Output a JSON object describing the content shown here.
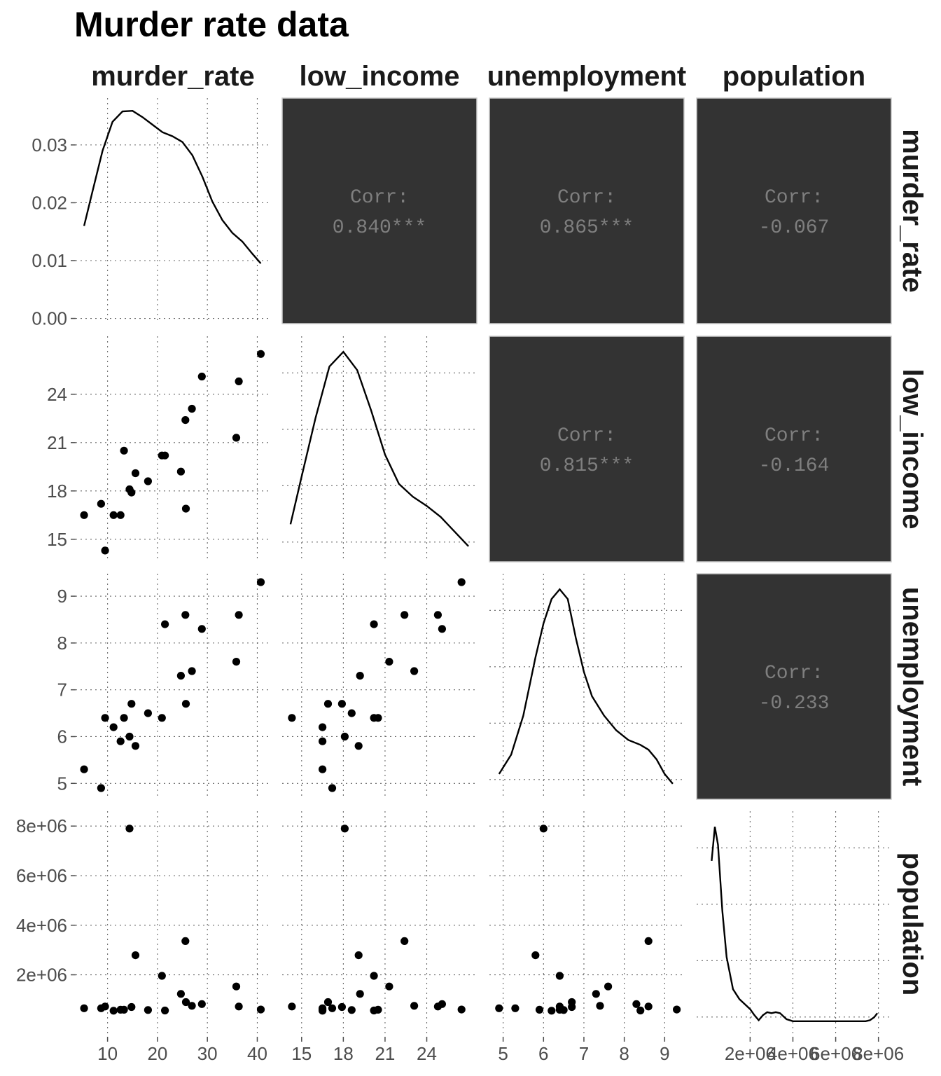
{
  "chart_data": {
    "type": "scatter-matrix",
    "title": "Murder rate data",
    "variables": [
      "murder_rate",
      "low_income",
      "unemployment",
      "population"
    ],
    "correlations": [
      {
        "row": 0,
        "col": 1,
        "label": "Corr:",
        "value": "0.840***"
      },
      {
        "row": 0,
        "col": 2,
        "label": "Corr:",
        "value": "0.865***"
      },
      {
        "row": 0,
        "col": 3,
        "label": "Corr:",
        "value": "-0.067"
      },
      {
        "row": 1,
        "col": 2,
        "label": "Corr:",
        "value": "0.815***"
      },
      {
        "row": 1,
        "col": 3,
        "label": "Corr:",
        "value": "-0.164"
      },
      {
        "row": 2,
        "col": 3,
        "label": "Corr:",
        "value": "-0.233"
      }
    ],
    "axes": {
      "murder_rate": {
        "range": [
          3.6,
          42.6
        ],
        "ticks": [
          10,
          20,
          30,
          40
        ],
        "tick_labels": [
          "10",
          "20",
          "30",
          "40"
        ]
      },
      "low_income": {
        "range": [
          13.6,
          27.6
        ],
        "ticks": [
          15,
          18,
          21,
          24
        ],
        "tick_labels": [
          "15",
          "18",
          "21",
          "24"
        ],
        "x_tick_labels": [
          "15",
          "18",
          "21",
          "24"
        ]
      },
      "unemployment": {
        "range": [
          4.66,
          9.48
        ],
        "ticks": [
          5,
          6,
          7,
          8,
          9
        ],
        "tick_labels": [
          "5",
          "6",
          "7",
          "8",
          "9"
        ]
      },
      "population": {
        "range": [
          -500000,
          8600000
        ],
        "ticks": [
          2000000,
          4000000,
          6000000,
          8000000
        ],
        "tick_labels": [
          "2e+06",
          "4e+06",
          "6e+06",
          "8e+06"
        ]
      }
    },
    "density_axis": {
      "range": [
        -0.0009,
        0.0381
      ],
      "ticks": [
        0,
        0.01,
        0.02,
        0.03
      ],
      "tick_labels": [
        "0.00",
        "0.01",
        "0.02",
        "0.03"
      ]
    },
    "densities": {
      "murder_rate": {
        "x": [
          5.3,
          7,
          9,
          11,
          13,
          15,
          17,
          19,
          21,
          23,
          25,
          27,
          29,
          31,
          33,
          35,
          37,
          39,
          40.7
        ],
        "y": [
          0.016,
          0.022,
          0.029,
          0.034,
          0.0358,
          0.0359,
          0.0348,
          0.0335,
          0.0322,
          0.0315,
          0.0305,
          0.0282,
          0.0245,
          0.0202,
          0.017,
          0.0148,
          0.0133,
          0.0112,
          0.0095
        ]
      },
      "low_income": {
        "x": [
          14.2,
          15,
          16,
          17,
          18,
          19,
          20,
          21,
          22,
          23,
          24,
          25,
          26,
          27
        ],
        "y": [
          0.3,
          1.6,
          3.2,
          4.6,
          5.0,
          4.5,
          3.4,
          2.2,
          1.4,
          1.05,
          0.8,
          0.5,
          0.1,
          -0.3
        ]
      },
      "unemployment": {
        "x": [
          4.9,
          5.2,
          5.5,
          5.8,
          6.0,
          6.2,
          6.4,
          6.6,
          6.8,
          7.0,
          7.2,
          7.5,
          7.8,
          8.1,
          8.4,
          8.6,
          8.8,
          9.0,
          9.2
        ],
        "y": [
          0.4,
          0.8,
          1.6,
          2.8,
          3.5,
          4.0,
          4.2,
          4.0,
          3.2,
          2.5,
          2.0,
          1.6,
          1.3,
          1.1,
          1.0,
          0.9,
          0.7,
          0.4,
          0.2
        ]
      },
      "population": {
        "x": [
          200000,
          350000,
          500000,
          700000,
          900000,
          1200000,
          1500000,
          1700000,
          2000000,
          2200000,
          2400000,
          2600000,
          2800000,
          3000000,
          3200000,
          3400000,
          3700000,
          4000000,
          5000000,
          6000000,
          7000000,
          7400000,
          7600000,
          7800000,
          7950000
        ],
        "y": [
          0.8,
          0.97,
          0.88,
          0.55,
          0.32,
          0.16,
          0.11,
          0.09,
          0.06,
          0.03,
          0.005,
          0.03,
          0.045,
          0.04,
          0.045,
          0.04,
          0.01,
          0.0,
          0.0,
          0.0,
          0.0,
          0.0,
          0.005,
          0.02,
          0.04
        ]
      }
    },
    "observations": {
      "murder_rate": [
        5.3,
        8.7,
        9.5,
        11.2,
        12.6,
        13.3,
        14.4,
        14.8,
        15.6,
        18.1,
        20.9,
        21.5,
        24.7,
        25.6,
        25.7,
        26.9,
        28.9,
        35.8,
        36.3,
        40.7
      ],
      "low_income": [
        16.5,
        17.2,
        14.3,
        16.5,
        16.5,
        20.5,
        18.1,
        17.9,
        19.1,
        18.6,
        20.2,
        20.2,
        19.2,
        22.4,
        16.9,
        23.1,
        25.1,
        21.3,
        24.8,
        26.5
      ],
      "unemployment": [
        5.3,
        4.9,
        6.4,
        6.2,
        5.9,
        6.4,
        6.0,
        6.7,
        5.8,
        6.5,
        6.4,
        8.4,
        7.3,
        8.6,
        6.7,
        7.4,
        8.3,
        7.6,
        8.6,
        9.3
      ],
      "population": [
        650000,
        650000,
        720000,
        550000,
        590000,
        590000,
        7900000,
        700000,
        2790000,
        580000,
        1960000,
        560000,
        1230000,
        3360000,
        900000,
        750000,
        820000,
        1530000,
        720000,
        600000
      ]
    }
  }
}
